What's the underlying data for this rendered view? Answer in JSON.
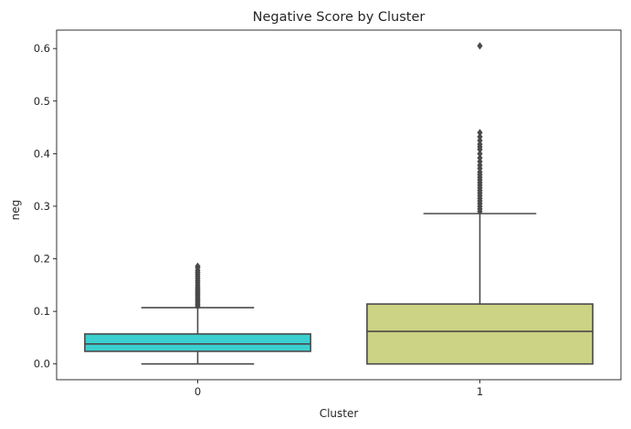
{
  "chart_data": {
    "type": "box",
    "title": "Negative Score by Cluster",
    "xlabel": "Cluster",
    "ylabel": "neg",
    "ylim": [
      -0.03,
      0.635
    ],
    "yticks": [
      0.0,
      0.1,
      0.2,
      0.3,
      0.4,
      0.5,
      0.6
    ],
    "ytick_labels": [
      "0.0",
      "0.1",
      "0.2",
      "0.3",
      "0.4",
      "0.5",
      "0.6"
    ],
    "grid": false,
    "categories": [
      "0",
      "1"
    ],
    "boxes": [
      {
        "category": "0",
        "color": "#3ccfcf",
        "whisker_low": 0.0,
        "q1": 0.024,
        "median": 0.038,
        "q3": 0.057,
        "whisker_high": 0.107,
        "outliers": [
          0.11,
          0.113,
          0.116,
          0.119,
          0.122,
          0.125,
          0.128,
          0.131,
          0.134,
          0.137,
          0.14,
          0.143,
          0.146,
          0.15,
          0.154,
          0.158,
          0.162,
          0.166,
          0.17,
          0.174,
          0.178,
          0.183,
          0.186
        ]
      },
      {
        "category": "1",
        "color": "#ccd384",
        "whisker_low": 0.0,
        "q1": 0.0,
        "median": 0.062,
        "q3": 0.114,
        "whisker_high": 0.286,
        "outliers": [
          0.29,
          0.295,
          0.3,
          0.305,
          0.31,
          0.315,
          0.32,
          0.325,
          0.33,
          0.335,
          0.34,
          0.345,
          0.35,
          0.355,
          0.36,
          0.365,
          0.372,
          0.378,
          0.385,
          0.392,
          0.4,
          0.408,
          0.413,
          0.418,
          0.425,
          0.432,
          0.44,
          0.605
        ]
      }
    ]
  }
}
